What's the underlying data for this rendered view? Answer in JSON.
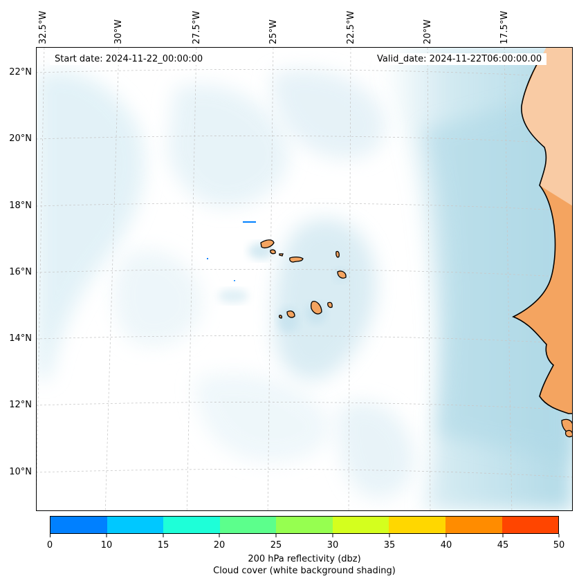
{
  "map": {
    "longitude_labels": [
      "32.5°W",
      "30°W",
      "27.5°W",
      "25°W",
      "22.5°W",
      "20°W",
      "17.5°W"
    ],
    "latitude_labels": [
      "22°N",
      "20°N",
      "18°N",
      "16°N",
      "14°N",
      "12°N",
      "10°N"
    ],
    "start_date": "Start date: 2024-11-22_00:00:00",
    "valid_date": "Valid_date: 2024-11-22T06:00:00.00"
  },
  "colorbar": {
    "ticks": [
      "0",
      "10",
      "15",
      "20",
      "25",
      "30",
      "35",
      "40",
      "45",
      "50"
    ],
    "colors": [
      "#0080ff",
      "#00c8ff",
      "#1effd8",
      "#5cff8c",
      "#96ff50",
      "#d4ff1e",
      "#ffd700",
      "#ff8c00",
      "#ff4500"
    ],
    "label_line1": "200 hPa reflectivity (dbz)",
    "label_line2": "Cloud cover (white background shading)"
  },
  "colors": {
    "ocean_cloud": "#add8e6",
    "land": "#f4a460",
    "land_light": "#f9d2b0",
    "coast": "#000000",
    "grid": "#c8c8c8"
  }
}
